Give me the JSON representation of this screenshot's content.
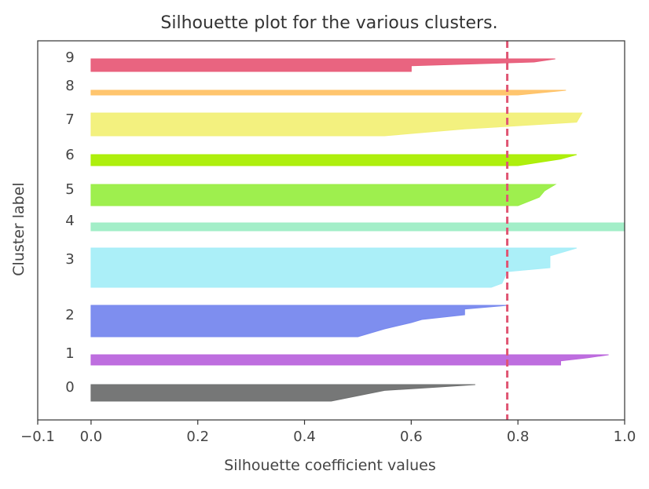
{
  "chart_data": {
    "type": "silhouette",
    "title": "Silhouette plot for the various clusters.",
    "xlabel": "Silhouette coefficient values",
    "ylabel": "Cluster label",
    "xlim": [
      -0.1,
      1.0
    ],
    "xticks": [
      -0.1,
      0.0,
      0.2,
      0.4,
      0.6,
      0.8,
      1.0
    ],
    "xtick_labels": [
      "−0.1",
      "0.0",
      "0.2",
      "0.4",
      "0.6",
      "0.8",
      "1.0"
    ],
    "grid": false,
    "average_silhouette": 0.78,
    "average_line_color": "#e05573",
    "clusters": [
      {
        "label": "0",
        "color": "#6f7070",
        "max": 0.72,
        "min": 0.0,
        "profile": [
          [
            0.0,
            0.72
          ],
          [
            0.15,
            0.65
          ],
          [
            0.35,
            0.55
          ],
          [
            1.0,
            0.45
          ]
        ]
      },
      {
        "label": "1",
        "color": "#bb66dd",
        "max": 0.97,
        "min": 0.0,
        "profile": [
          [
            0.0,
            0.97
          ],
          [
            0.3,
            0.93
          ],
          [
            0.6,
            0.88
          ],
          [
            1.0,
            0.88
          ]
        ]
      },
      {
        "label": "2",
        "color": "#7788ee",
        "max": 0.78,
        "min": 0.0,
        "profile": [
          [
            0.0,
            0.78
          ],
          [
            0.12,
            0.7
          ],
          [
            0.3,
            0.7
          ],
          [
            0.45,
            0.62
          ],
          [
            0.55,
            0.6
          ],
          [
            0.75,
            0.55
          ],
          [
            1.0,
            0.5
          ]
        ]
      },
      {
        "label": "3",
        "color": "#a6eef8",
        "max": 0.91,
        "min": 0.0,
        "profile": [
          [
            0.0,
            0.91
          ],
          [
            0.2,
            0.86
          ],
          [
            0.5,
            0.86
          ],
          [
            0.6,
            0.78
          ],
          [
            0.9,
            0.77
          ],
          [
            1.0,
            0.75
          ]
        ]
      },
      {
        "label": "4",
        "color": "#9eedc5",
        "max": 1.0,
        "min": 0.0,
        "profile": [
          [
            0.0,
            1.0
          ],
          [
            1.0,
            1.0
          ]
        ]
      },
      {
        "label": "5",
        "color": "#99ee44",
        "max": 0.87,
        "min": 0.0,
        "profile": [
          [
            0.0,
            0.87
          ],
          [
            0.3,
            0.85
          ],
          [
            0.6,
            0.84
          ],
          [
            1.0,
            0.8
          ]
        ]
      },
      {
        "label": "6",
        "color": "#aaee00",
        "max": 0.91,
        "min": 0.0,
        "profile": [
          [
            0.0,
            0.91
          ],
          [
            0.4,
            0.88
          ],
          [
            1.0,
            0.8
          ]
        ]
      },
      {
        "label": "7",
        "color": "#f2f078",
        "max": 0.92,
        "min": 0.0,
        "profile": [
          [
            0.0,
            0.92
          ],
          [
            0.4,
            0.91
          ],
          [
            0.7,
            0.7
          ],
          [
            1.0,
            0.55
          ]
        ]
      },
      {
        "label": "8",
        "color": "#ffc266",
        "max": 0.89,
        "min": 0.0,
        "profile": [
          [
            0.0,
            0.89
          ],
          [
            1.0,
            0.8
          ]
        ]
      },
      {
        "label": "9",
        "color": "#e85c79",
        "max": 0.87,
        "min": 0.0,
        "profile": [
          [
            0.0,
            0.87
          ],
          [
            0.25,
            0.83
          ],
          [
            0.55,
            0.6
          ],
          [
            1.0,
            0.6
          ]
        ]
      }
    ]
  }
}
